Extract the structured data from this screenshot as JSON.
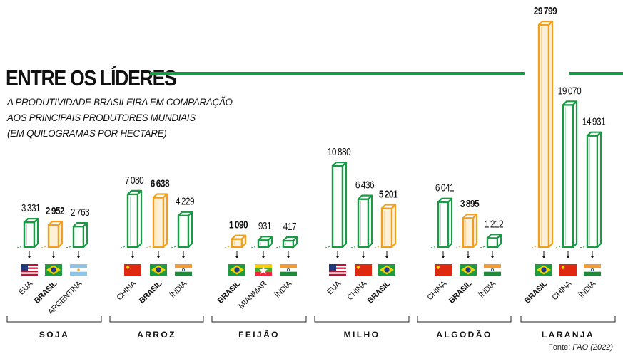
{
  "header": {
    "title": "ENTRE OS LÍDERES",
    "subtitle_lines": [
      "A PRODUTIVIDADE BRASILEIRA EM COMPARAÇÃO",
      "AOS PRINCIPAIS PRODUTORES MUNDIAIS",
      "(EM QUILOGRAMAS POR HECTARE)"
    ]
  },
  "source": {
    "label": "Fonte:",
    "name": "FAO (2022)"
  },
  "colors": {
    "green": "#1a9a45",
    "orange": "#f0a020",
    "orange_fill": "#fdf0d8",
    "green_fill": "#ffffff",
    "text": "#111111"
  },
  "chart_data": {
    "type": "bar",
    "unit": "kg/ha",
    "ylim": [
      0,
      29799
    ],
    "groups": [
      {
        "name": "SOJA",
        "bars": [
          {
            "country": "EUA",
            "value": 3331,
            "highlight": false,
            "flag": "usa-flag"
          },
          {
            "country": "BRASIL",
            "value": 2952,
            "highlight": true,
            "flag": "brazil-flag"
          },
          {
            "country": "ARGENTINA",
            "value": 2763,
            "highlight": false,
            "flag": "argentina-flag"
          }
        ]
      },
      {
        "name": "ARROZ",
        "bars": [
          {
            "country": "CHINA",
            "value": 7080,
            "highlight": false,
            "flag": "china-flag"
          },
          {
            "country": "BRASIL",
            "value": 6638,
            "highlight": true,
            "flag": "brazil-flag"
          },
          {
            "country": "ÍNDIA",
            "value": 4229,
            "highlight": false,
            "flag": "india-flag"
          }
        ]
      },
      {
        "name": "FEIJÃO",
        "bars": [
          {
            "country": "BRASIL",
            "value": 1090,
            "highlight": true,
            "flag": "brazil-flag"
          },
          {
            "country": "MIANMAR",
            "value": 931,
            "highlight": false,
            "flag": "myanmar-flag"
          },
          {
            "country": "ÍNDIA",
            "value": 417,
            "highlight": false,
            "flag": "india-flag"
          }
        ]
      },
      {
        "name": "MILHO",
        "bars": [
          {
            "country": "EUA",
            "value": 10880,
            "highlight": false,
            "flag": "usa-flag"
          },
          {
            "country": "CHINA",
            "value": 6436,
            "highlight": false,
            "flag": "china-flag"
          },
          {
            "country": "BRASIL",
            "value": 5201,
            "highlight": true,
            "flag": "brazil-flag"
          }
        ]
      },
      {
        "name": "ALGODÃO",
        "bars": [
          {
            "country": "CHINA",
            "value": 6041,
            "highlight": false,
            "flag": "china-flag"
          },
          {
            "country": "BRASIL",
            "value": 3895,
            "highlight": true,
            "flag": "brazil-flag"
          },
          {
            "country": "ÍNDIA",
            "value": 1212,
            "highlight": false,
            "flag": "india-flag"
          }
        ]
      },
      {
        "name": "LARANJA",
        "bars": [
          {
            "country": "BRASIL",
            "value": 29799,
            "highlight": true,
            "flag": "brazil-flag"
          },
          {
            "country": "CHINA",
            "value": 19070,
            "highlight": false,
            "flag": "china-flag"
          },
          {
            "country": "ÍNDIA",
            "value": 14931,
            "highlight": false,
            "flag": "india-flag"
          }
        ]
      }
    ]
  }
}
